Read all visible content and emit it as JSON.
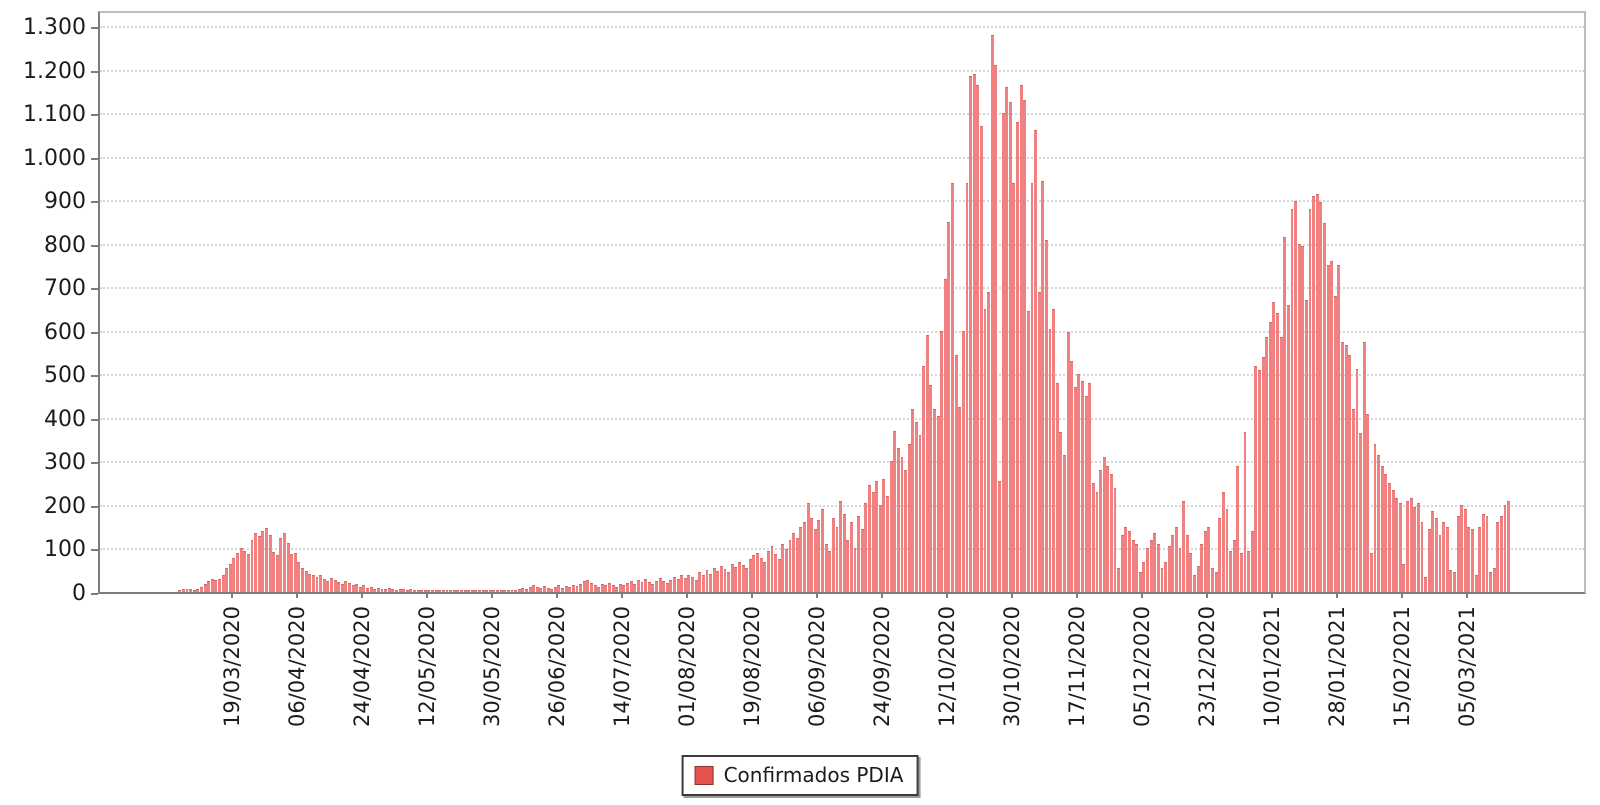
{
  "chart_data": {
    "type": "bar",
    "title": "",
    "series_name": "Confirmados PDIA",
    "bar_color": "#f18181",
    "bar_top_color": "#cf6b6b",
    "gridline_color": "#d7d7d7",
    "legend_position": "bottom",
    "grid": "horizontal-dotted",
    "ylabel": "",
    "xlabel": "",
    "y_axis_max": 1339,
    "y_ticks": [
      {
        "label": "0",
        "value": 0
      },
      {
        "label": "100",
        "value": 100
      },
      {
        "label": "200",
        "value": 200
      },
      {
        "label": "300",
        "value": 300
      },
      {
        "label": "400",
        "value": 400
      },
      {
        "label": "500",
        "value": 500
      },
      {
        "label": "600",
        "value": 600
      },
      {
        "label": "700",
        "value": 700
      },
      {
        "label": "800",
        "value": 800
      },
      {
        "label": "900",
        "value": 900
      },
      {
        "label": "1.000",
        "value": 1000
      },
      {
        "label": "1.100",
        "value": 1100
      },
      {
        "label": "1.200",
        "value": 1200
      },
      {
        "label": "1.300",
        "value": 1300
      }
    ],
    "x_tick_labels": [
      "19/03/2020",
      "06/04/2020",
      "24/04/2020",
      "12/05/2020",
      "30/05/2020",
      "26/06/2020",
      "14/07/2020",
      "01/08/2020",
      "19/08/2020",
      "06/09/2020",
      "24/09/2020",
      "12/10/2020",
      "30/10/2020",
      "17/11/2020",
      "05/12/2020",
      "23/12/2020",
      "10/01/2021",
      "28/01/2021",
      "15/02/2021",
      "05/03/2021"
    ],
    "x_first_tick_index": 36,
    "x_tick_step": 18,
    "values": [
      0,
      0,
      0,
      0,
      0,
      0,
      0,
      0,
      0,
      0,
      0,
      0,
      0,
      0,
      0,
      0,
      0,
      0,
      0,
      0,
      0,
      4,
      6,
      8,
      6,
      5,
      8,
      12,
      18,
      25,
      30,
      28,
      30,
      38,
      55,
      65,
      78,
      90,
      100,
      95,
      88,
      120,
      135,
      128,
      140,
      146,
      130,
      92,
      85,
      125,
      135,
      112,
      88,
      90,
      70,
      55,
      48,
      42,
      38,
      35,
      40,
      30,
      25,
      32,
      28,
      22,
      18,
      25,
      20,
      15,
      18,
      12,
      15,
      10,
      12,
      8,
      10,
      8,
      6,
      9,
      7,
      5,
      8,
      6,
      4,
      6,
      4,
      5,
      3,
      4,
      3,
      5,
      3,
      4,
      2,
      3,
      2,
      3,
      2,
      4,
      3,
      2,
      1,
      3,
      2,
      2,
      3,
      2,
      4,
      2,
      3,
      2,
      3,
      5,
      3,
      6,
      10,
      8,
      12,
      15,
      12,
      9,
      14,
      10,
      8,
      12,
      15,
      10,
      14,
      12,
      16,
      13,
      18,
      25,
      28,
      20,
      15,
      12,
      18,
      15,
      20,
      16,
      12,
      18,
      15,
      20,
      25,
      18,
      28,
      22,
      30,
      24,
      18,
      26,
      32,
      25,
      20,
      28,
      35,
      30,
      38,
      32,
      40,
      35,
      28,
      45,
      38,
      50,
      42,
      55,
      48,
      60,
      52,
      45,
      65,
      58,
      70,
      62,
      55,
      75,
      85,
      90,
      78,
      68,
      95,
      105,
      88,
      75,
      110,
      98,
      120,
      135,
      125,
      150,
      160,
      205,
      170,
      145,
      165,
      190,
      110,
      95,
      170,
      150,
      210,
      180,
      120,
      160,
      100,
      175,
      145,
      205,
      245,
      230,
      255,
      200,
      260,
      220,
      300,
      370,
      330,
      310,
      280,
      340,
      420,
      390,
      360,
      520,
      590,
      475,
      420,
      405,
      600,
      720,
      850,
      940,
      545,
      425,
      600,
      940,
      1185,
      1190,
      1165,
      1070,
      650,
      690,
      1280,
      1210,
      255,
      1100,
      1160,
      1125,
      940,
      1080,
      1165,
      1130,
      645,
      940,
      1060,
      690,
      945,
      808,
      605,
      650,
      480,
      368,
      315,
      598,
      530,
      470,
      500,
      485,
      450,
      480,
      250,
      230,
      280,
      310,
      290,
      270,
      240,
      55,
      130,
      150,
      140,
      120,
      110,
      45,
      70,
      100,
      120,
      135,
      110,
      55,
      70,
      105,
      130,
      150,
      100,
      210,
      130,
      90,
      40,
      60,
      110,
      140,
      150,
      55,
      45,
      170,
      230,
      190,
      95,
      120,
      290,
      90,
      368,
      95,
      140,
      520,
      510,
      540,
      585,
      620,
      665,
      640,
      585,
      816,
      660,
      880,
      897,
      800,
      795,
      670,
      880,
      910,
      915,
      895,
      847,
      750,
      760,
      680,
      750,
      575,
      568,
      545,
      420,
      513,
      365,
      575,
      410,
      90,
      340,
      315,
      290,
      270,
      250,
      235,
      215,
      205,
      65,
      210,
      215,
      195,
      205,
      160,
      35,
      145,
      185,
      170,
      130,
      160,
      150,
      50,
      45,
      175,
      200,
      190,
      150,
      145,
      40,
      150,
      180,
      175,
      45,
      55,
      160,
      175,
      200,
      210
    ]
  },
  "legend": {
    "label": "Confirmados PDIA",
    "swatch_color": "#e4534e"
  }
}
